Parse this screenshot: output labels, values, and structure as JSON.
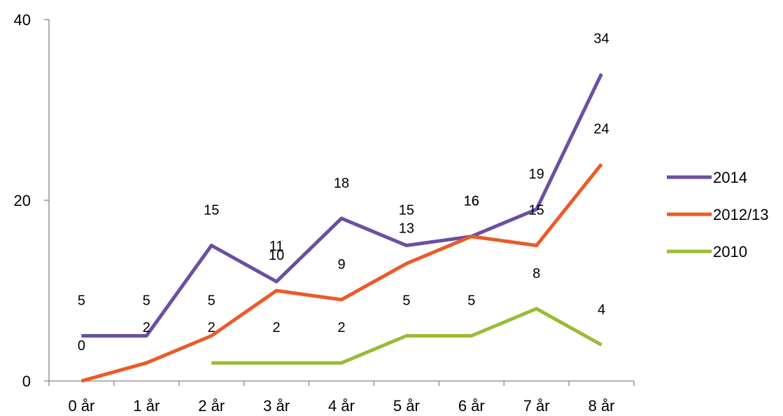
{
  "chart_data": {
    "type": "line",
    "categories": [
      "0 år",
      "1 år",
      "2 år",
      "3 år",
      "4 år",
      "5 år",
      "6 år",
      "7 år",
      "8 år"
    ],
    "ylim": [
      0,
      40
    ],
    "yticks": [
      "0",
      "20",
      "40"
    ],
    "grid": false,
    "legend_position": "right",
    "series": [
      {
        "name": "2014",
        "color": "#6a4fa3",
        "values": [
          5,
          5,
          15,
          11,
          18,
          15,
          16,
          19,
          34
        ],
        "labels": [
          "5",
          "5",
          "15",
          "11",
          "18",
          "15",
          "16",
          "19",
          "34"
        ]
      },
      {
        "name": "2012/13",
        "color": "#ec5a27",
        "values": [
          0,
          2,
          5,
          10,
          9,
          13,
          16,
          15,
          24
        ],
        "labels": [
          "0",
          "2",
          "5",
          "10",
          "9",
          "13",
          "16",
          "15",
          "24"
        ]
      },
      {
        "name": "2010",
        "color": "#9bbb34",
        "values": [
          null,
          null,
          2,
          2,
          2,
          5,
          5,
          8,
          4
        ],
        "labels": [
          "",
          "",
          "2",
          "2",
          "2",
          "5",
          "5",
          "8",
          "4"
        ]
      }
    ]
  }
}
